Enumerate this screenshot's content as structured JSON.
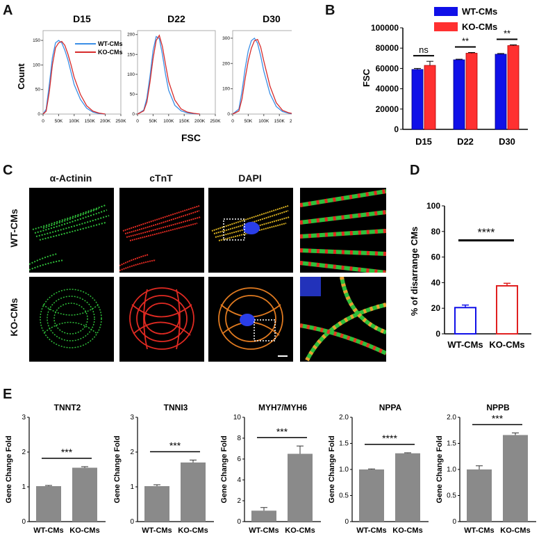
{
  "panels": {
    "A": "A",
    "B": "B",
    "C": "C",
    "D": "D",
    "E": "E"
  },
  "panel_a": {
    "titles": [
      "D15",
      "D22",
      "D30"
    ],
    "ylabel": "Count",
    "xlabel": "FSC",
    "xticks": [
      "0",
      "50K",
      "100K",
      "150K",
      "200K",
      "250K"
    ],
    "legend": [
      "WT-CMs",
      "KO-CMs"
    ],
    "colors": {
      "wt": "#3a8ee6",
      "ko": "#d62b2b"
    },
    "yticks": [
      [
        "0",
        "50",
        "100",
        "150"
      ],
      [
        "0",
        "50",
        "100",
        "150",
        "200"
      ],
      [
        "0",
        "100",
        "200",
        "300"
      ]
    ]
  },
  "panel_c": {
    "col_labels": [
      "α-Actinin",
      "cTnT",
      "DAPI"
    ],
    "row_labels": [
      "WT-CMs",
      "KO-CMs"
    ]
  },
  "chart_data": [
    {
      "type": "line",
      "title": "D15",
      "xlabel": "FSC",
      "ylabel": "Count",
      "xlim": [
        0,
        250000
      ],
      "ylim": [
        0,
        170
      ],
      "series": [
        {
          "name": "WT-CMs",
          "x": [
            0,
            10000,
            20000,
            30000,
            40000,
            50000,
            60000,
            70000,
            80000,
            90000,
            100000,
            120000,
            140000,
            160000,
            180000,
            200000
          ],
          "values": [
            0,
            10,
            60,
            115,
            145,
            150,
            145,
            130,
            110,
            85,
            60,
            30,
            12,
            4,
            1,
            0
          ]
        },
        {
          "name": "KO-CMs",
          "x": [
            0,
            10000,
            20000,
            30000,
            40000,
            50000,
            60000,
            70000,
            80000,
            90000,
            100000,
            120000,
            140000,
            160000,
            180000,
            200000
          ],
          "values": [
            0,
            6,
            45,
            100,
            135,
            145,
            148,
            140,
            122,
            100,
            75,
            40,
            17,
            6,
            2,
            0
          ]
        }
      ]
    },
    {
      "type": "line",
      "title": "D22",
      "xlabel": "FSC",
      "ylabel": "Count",
      "xlim": [
        0,
        250000
      ],
      "ylim": [
        0,
        210
      ],
      "series": [
        {
          "name": "WT-CMs",
          "x": [
            0,
            20000,
            30000,
            40000,
            50000,
            60000,
            70000,
            80000,
            90000,
            100000,
            120000,
            140000,
            160000,
            180000,
            200000
          ],
          "values": [
            0,
            10,
            40,
            95,
            160,
            195,
            190,
            150,
            100,
            60,
            22,
            8,
            3,
            1,
            0
          ]
        },
        {
          "name": "KO-CMs",
          "x": [
            0,
            20000,
            30000,
            40000,
            50000,
            60000,
            70000,
            80000,
            90000,
            100000,
            120000,
            140000,
            160000,
            180000,
            200000
          ],
          "values": [
            0,
            8,
            30,
            80,
            140,
            185,
            198,
            170,
            125,
            82,
            35,
            13,
            5,
            2,
            0
          ]
        }
      ]
    },
    {
      "type": "line",
      "title": "D30",
      "xlabel": "FSC",
      "ylabel": "Count",
      "xlim": [
        0,
        250000
      ],
      "ylim": [
        0,
        330
      ],
      "series": [
        {
          "name": "WT-CMs",
          "x": [
            0,
            20000,
            30000,
            40000,
            50000,
            60000,
            70000,
            80000,
            90000,
            100000,
            120000,
            140000,
            160000,
            180000,
            200000
          ],
          "values": [
            0,
            20,
            90,
            180,
            250,
            290,
            300,
            280,
            230,
            170,
            80,
            30,
            10,
            3,
            0
          ]
        },
        {
          "name": "KO-CMs",
          "x": [
            0,
            20000,
            30000,
            40000,
            50000,
            60000,
            70000,
            80000,
            90000,
            100000,
            120000,
            140000,
            160000,
            180000,
            200000
          ],
          "values": [
            0,
            12,
            60,
            140,
            210,
            260,
            290,
            295,
            265,
            210,
            110,
            45,
            15,
            5,
            0
          ]
        }
      ]
    },
    {
      "type": "bar",
      "categories": [
        "D15",
        "D22",
        "D30"
      ],
      "ylabel": "FSC",
      "ylim": [
        0,
        100000
      ],
      "yticks": [
        "0",
        "20000",
        "40000",
        "60000",
        "80000",
        "100000"
      ],
      "legend_position": "top-right",
      "series": [
        {
          "name": "WT-CMs",
          "color": "#1010e8",
          "values": [
            59000,
            68500,
            74000
          ],
          "errors": [
            1000,
            600,
            700
          ]
        },
        {
          "name": "KO-CMs",
          "color": "#ff3030",
          "values": [
            63000,
            75000,
            82500
          ],
          "errors": [
            4000,
            700,
            700
          ]
        }
      ],
      "significance": [
        "ns",
        "**",
        "**"
      ]
    },
    {
      "type": "bar",
      "categories": [
        "WT-CMs",
        "KO-CMs"
      ],
      "ylabel": "% of disarrange CMs",
      "ylim": [
        0,
        100
      ],
      "yticks": [
        "0",
        "20",
        "40",
        "60",
        "80",
        "100"
      ],
      "values": [
        20.5,
        37.5
      ],
      "errors": [
        2,
        2
      ],
      "colors": [
        "#1010e8",
        "#e02020"
      ],
      "significance": "****"
    },
    {
      "type": "bar",
      "title": "TNNT2",
      "categories": [
        "WT-CMs",
        "KO-CMs"
      ],
      "ylabel": "Gene Change Fold",
      "ylim": [
        0,
        3
      ],
      "yticks": [
        "0",
        "1",
        "2",
        "3"
      ],
      "values": [
        1.02,
        1.55
      ],
      "errors": [
        0.02,
        0.03
      ],
      "significance": "***"
    },
    {
      "type": "bar",
      "title": "TNNI3",
      "categories": [
        "WT-CMs",
        "KO-CMs"
      ],
      "ylabel": "Gene Change Fold",
      "ylim": [
        0,
        3
      ],
      "yticks": [
        "0",
        "1",
        "2",
        "3"
      ],
      "values": [
        1.02,
        1.7
      ],
      "errors": [
        0.04,
        0.07
      ],
      "significance": "***"
    },
    {
      "type": "bar",
      "title": "MYH7/MYH6",
      "categories": [
        "WT-CMs",
        "KO-CMs"
      ],
      "ylabel": "Gene Change Fold",
      "ylim": [
        0,
        10
      ],
      "yticks": [
        "0",
        "2",
        "4",
        "6",
        "8",
        "10"
      ],
      "values": [
        1.05,
        6.5
      ],
      "errors": [
        0.3,
        0.75
      ],
      "significance": "***"
    },
    {
      "type": "bar",
      "title": "NPPA",
      "categories": [
        "WT-CMs",
        "KO-CMs"
      ],
      "ylabel": "Gene Change Fold",
      "ylim": [
        0,
        2
      ],
      "yticks": [
        "0",
        "0.5",
        "1.0",
        "1.5",
        "2.0"
      ],
      "values": [
        1.0,
        1.31
      ],
      "errors": [
        0.01,
        0.01
      ],
      "significance": "****"
    },
    {
      "type": "bar",
      "title": "NPPB",
      "categories": [
        "WT-CMs",
        "KO-CMs"
      ],
      "ylabel": "Gene Change Fold",
      "ylim": [
        0,
        2
      ],
      "yticks": [
        "0",
        "0.5",
        "1.0",
        "1.5",
        "2.0"
      ],
      "values": [
        1.0,
        1.66
      ],
      "errors": [
        0.07,
        0.04
      ],
      "significance": "***"
    }
  ]
}
